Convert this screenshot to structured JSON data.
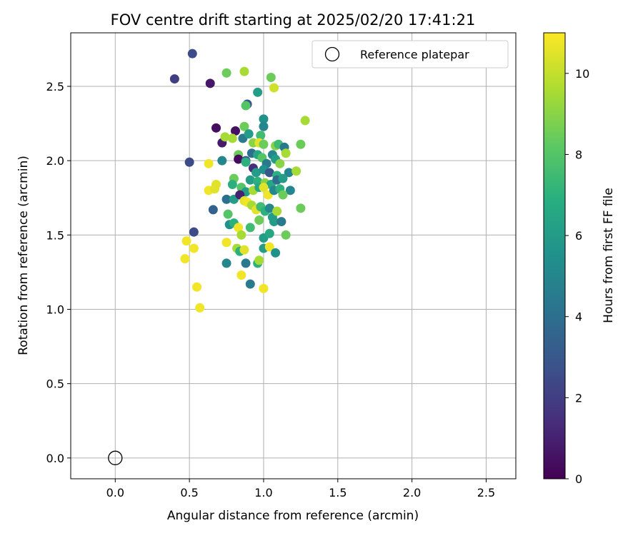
{
  "chart_data": {
    "type": "scatter",
    "title": "FOV centre drift starting at 2025/02/20 17:41:21",
    "xlabel": "Angular distance from reference (arcmin)",
    "ylabel": "Rotation from reference (arcmin)",
    "xlim": [
      -0.3,
      2.7
    ],
    "ylim": [
      -0.14,
      2.86
    ],
    "x_ticks": [
      "0.0",
      "0.5",
      "1.0",
      "1.5",
      "2.0",
      "2.5"
    ],
    "y_ticks": [
      "0.0",
      "0.5",
      "1.0",
      "1.5",
      "2.0",
      "2.5"
    ],
    "grid": true,
    "legend": {
      "position": "top-right",
      "entries": [
        "Reference platepar"
      ]
    },
    "colorbar": {
      "label": "Hours from first FF file",
      "colormap": "viridis",
      "range": [
        0,
        11
      ],
      "ticks": [
        "0",
        "2",
        "4",
        "6",
        "8",
        "10"
      ]
    },
    "reference_point": {
      "x": 0.0,
      "y": 0.0
    },
    "points": [
      {
        "x": 0.4,
        "y": 2.55,
        "h": 2.0
      },
      {
        "x": 0.52,
        "y": 2.72,
        "h": 2.5
      },
      {
        "x": 0.64,
        "y": 2.52,
        "h": 0.7
      },
      {
        "x": 0.75,
        "y": 2.59,
        "h": 8.5
      },
      {
        "x": 0.87,
        "y": 2.6,
        "h": 9.5
      },
      {
        "x": 1.05,
        "y": 2.56,
        "h": 8.5
      },
      {
        "x": 0.96,
        "y": 2.46,
        "h": 6.0
      },
      {
        "x": 1.07,
        "y": 2.49,
        "h": 10.2
      },
      {
        "x": 0.89,
        "y": 2.38,
        "h": 3.0
      },
      {
        "x": 0.88,
        "y": 2.37,
        "h": 8.0
      },
      {
        "x": 1.0,
        "y": 2.28,
        "h": 5.5
      },
      {
        "x": 1.28,
        "y": 2.27,
        "h": 9.5
      },
      {
        "x": 0.68,
        "y": 2.22,
        "h": 0.4
      },
      {
        "x": 0.81,
        "y": 2.2,
        "h": 0.5
      },
      {
        "x": 0.87,
        "y": 2.23,
        "h": 8.5
      },
      {
        "x": 1.0,
        "y": 2.23,
        "h": 5.0
      },
      {
        "x": 0.72,
        "y": 2.12,
        "h": 0.8
      },
      {
        "x": 0.74,
        "y": 2.16,
        "h": 9.5
      },
      {
        "x": 0.79,
        "y": 2.15,
        "h": 9.5
      },
      {
        "x": 0.86,
        "y": 2.15,
        "h": 4.5
      },
      {
        "x": 0.9,
        "y": 2.18,
        "h": 6.0
      },
      {
        "x": 0.98,
        "y": 2.17,
        "h": 7.5
      },
      {
        "x": 0.93,
        "y": 2.12,
        "h": 9.0
      },
      {
        "x": 0.97,
        "y": 2.12,
        "h": 10.5
      },
      {
        "x": 1.0,
        "y": 2.11,
        "h": 8.5
      },
      {
        "x": 1.08,
        "y": 2.1,
        "h": 9.0
      },
      {
        "x": 1.1,
        "y": 2.11,
        "h": 7.5
      },
      {
        "x": 1.14,
        "y": 2.09,
        "h": 4.5
      },
      {
        "x": 1.25,
        "y": 2.11,
        "h": 8.5
      },
      {
        "x": 0.5,
        "y": 1.99,
        "h": 2.5
      },
      {
        "x": 0.63,
        "y": 1.98,
        "h": 10.8
      },
      {
        "x": 0.72,
        "y": 2.0,
        "h": 5.0
      },
      {
        "x": 0.83,
        "y": 2.04,
        "h": 8.5
      },
      {
        "x": 0.83,
        "y": 2.01,
        "h": 0.3
      },
      {
        "x": 0.88,
        "y": 2.0,
        "h": 3.0
      },
      {
        "x": 0.92,
        "y": 2.05,
        "h": 4.0
      },
      {
        "x": 0.96,
        "y": 2.04,
        "h": 6.5
      },
      {
        "x": 0.99,
        "y": 2.02,
        "h": 8.0
      },
      {
        "x": 1.02,
        "y": 1.98,
        "h": 4.5
      },
      {
        "x": 1.06,
        "y": 2.04,
        "h": 5.0
      },
      {
        "x": 1.08,
        "y": 2.01,
        "h": 6.0
      },
      {
        "x": 1.11,
        "y": 1.98,
        "h": 9.0
      },
      {
        "x": 1.15,
        "y": 2.05,
        "h": 9.5
      },
      {
        "x": 0.88,
        "y": 1.99,
        "h": 7.0
      },
      {
        "x": 0.93,
        "y": 1.95,
        "h": 1.5
      },
      {
        "x": 0.95,
        "y": 1.92,
        "h": 6.0
      },
      {
        "x": 1.0,
        "y": 1.94,
        "h": 5.5
      },
      {
        "x": 1.04,
        "y": 1.92,
        "h": 3.0
      },
      {
        "x": 1.09,
        "y": 1.9,
        "h": 7.0
      },
      {
        "x": 1.17,
        "y": 1.92,
        "h": 5.0
      },
      {
        "x": 1.22,
        "y": 1.93,
        "h": 9.5
      },
      {
        "x": 0.8,
        "y": 1.88,
        "h": 8.5
      },
      {
        "x": 0.91,
        "y": 1.87,
        "h": 6.0
      },
      {
        "x": 0.96,
        "y": 1.86,
        "h": 7.0
      },
      {
        "x": 1.01,
        "y": 1.85,
        "h": 9.0
      },
      {
        "x": 1.05,
        "y": 1.84,
        "h": 6.5
      },
      {
        "x": 1.09,
        "y": 1.87,
        "h": 4.0
      },
      {
        "x": 1.13,
        "y": 1.88,
        "h": 6.0
      },
      {
        "x": 0.53,
        "y": 1.52,
        "h": 2.5
      },
      {
        "x": 0.63,
        "y": 1.8,
        "h": 10.8
      },
      {
        "x": 0.67,
        "y": 1.81,
        "h": 10.5
      },
      {
        "x": 0.68,
        "y": 1.84,
        "h": 10.5
      },
      {
        "x": 0.75,
        "y": 1.74,
        "h": 4.0
      },
      {
        "x": 0.79,
        "y": 1.84,
        "h": 7.0
      },
      {
        "x": 0.85,
        "y": 1.82,
        "h": 8.0
      },
      {
        "x": 0.88,
        "y": 1.79,
        "h": 6.0
      },
      {
        "x": 0.93,
        "y": 1.8,
        "h": 9.5
      },
      {
        "x": 0.97,
        "y": 1.82,
        "h": 6.5
      },
      {
        "x": 1.0,
        "y": 1.82,
        "h": 10.5
      },
      {
        "x": 1.03,
        "y": 1.77,
        "h": 10.8
      },
      {
        "x": 1.07,
        "y": 1.8,
        "h": 5.0
      },
      {
        "x": 1.11,
        "y": 1.81,
        "h": 7.0
      },
      {
        "x": 1.18,
        "y": 1.8,
        "h": 5.0
      },
      {
        "x": 0.66,
        "y": 1.67,
        "h": 3.5
      },
      {
        "x": 0.76,
        "y": 1.64,
        "h": 8.0
      },
      {
        "x": 0.8,
        "y": 1.74,
        "h": 6.0
      },
      {
        "x": 0.84,
        "y": 1.77,
        "h": 1.0
      },
      {
        "x": 0.87,
        "y": 1.73,
        "h": 10.5
      },
      {
        "x": 0.89,
        "y": 1.72,
        "h": 10.8
      },
      {
        "x": 0.92,
        "y": 1.7,
        "h": 9.5
      },
      {
        "x": 0.95,
        "y": 1.67,
        "h": 10.5
      },
      {
        "x": 0.98,
        "y": 1.69,
        "h": 7.5
      },
      {
        "x": 1.01,
        "y": 1.66,
        "h": 7.0
      },
      {
        "x": 1.04,
        "y": 1.68,
        "h": 5.0
      },
      {
        "x": 1.06,
        "y": 1.62,
        "h": 6.0
      },
      {
        "x": 1.09,
        "y": 1.66,
        "h": 9.5
      },
      {
        "x": 1.13,
        "y": 1.77,
        "h": 8.5
      },
      {
        "x": 1.25,
        "y": 1.68,
        "h": 8.5
      },
      {
        "x": 0.77,
        "y": 1.57,
        "h": 5.5
      },
      {
        "x": 0.8,
        "y": 1.58,
        "h": 7.0
      },
      {
        "x": 0.83,
        "y": 1.55,
        "h": 10.8
      },
      {
        "x": 0.85,
        "y": 1.5,
        "h": 9.5
      },
      {
        "x": 0.91,
        "y": 1.55,
        "h": 7.5
      },
      {
        "x": 0.97,
        "y": 1.6,
        "h": 8.5
      },
      {
        "x": 1.0,
        "y": 1.48,
        "h": 6.0
      },
      {
        "x": 1.04,
        "y": 1.51,
        "h": 6.5
      },
      {
        "x": 1.07,
        "y": 1.59,
        "h": 6.0
      },
      {
        "x": 1.12,
        "y": 1.59,
        "h": 4.5
      },
      {
        "x": 1.15,
        "y": 1.5,
        "h": 8.5
      },
      {
        "x": 0.48,
        "y": 1.46,
        "h": 10.8
      },
      {
        "x": 0.53,
        "y": 1.41,
        "h": 10.8
      },
      {
        "x": 0.75,
        "y": 1.45,
        "h": 10.8
      },
      {
        "x": 0.82,
        "y": 1.41,
        "h": 9.5
      },
      {
        "x": 0.84,
        "y": 1.39,
        "h": 7.0
      },
      {
        "x": 0.87,
        "y": 1.4,
        "h": 10.5
      },
      {
        "x": 1.0,
        "y": 1.41,
        "h": 6.0
      },
      {
        "x": 1.04,
        "y": 1.42,
        "h": 10.8
      },
      {
        "x": 1.08,
        "y": 1.38,
        "h": 5.5
      },
      {
        "x": 0.47,
        "y": 1.34,
        "h": 10.8
      },
      {
        "x": 0.75,
        "y": 1.31,
        "h": 5.0
      },
      {
        "x": 0.88,
        "y": 1.31,
        "h": 4.5
      },
      {
        "x": 0.96,
        "y": 1.31,
        "h": 7.0
      },
      {
        "x": 0.97,
        "y": 1.33,
        "h": 9.5
      },
      {
        "x": 0.85,
        "y": 1.23,
        "h": 10.8
      },
      {
        "x": 0.91,
        "y": 1.17,
        "h": 4.5
      },
      {
        "x": 1.0,
        "y": 1.14,
        "h": 10.8
      },
      {
        "x": 0.55,
        "y": 1.15,
        "h": 10.8
      },
      {
        "x": 0.57,
        "y": 1.01,
        "h": 10.8
      }
    ]
  }
}
